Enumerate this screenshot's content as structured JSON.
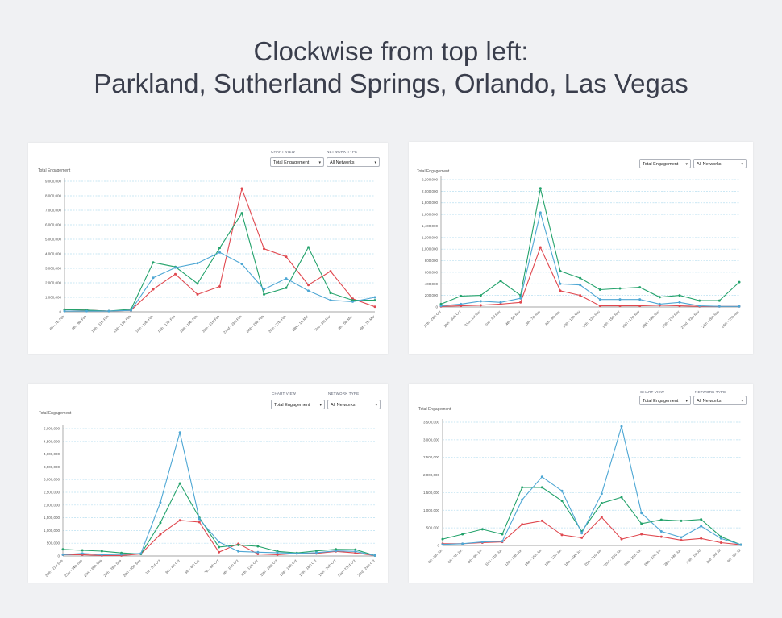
{
  "header": {
    "line1": "Clockwise from top left:",
    "line2": "Parkland, Sutherland Springs, Orlando, Las Vegas"
  },
  "colors": {
    "red": "#e0484f",
    "green": "#23a26b",
    "blue": "#4ea7d4",
    "grid": "#b9dff0"
  },
  "panels": [
    {
      "id": "parkland",
      "show_labels": true,
      "chart_view_label": "CHART VIEW",
      "network_type_label": "NETWORK TYPE",
      "chart_view": "Total Engagement",
      "network_type": "All Networks",
      "ylabel": "Total Engagement"
    },
    {
      "id": "sutherland",
      "show_labels": false,
      "chart_view": "Total Engagement",
      "network_type": "All Networks",
      "ylabel": "Total Engagement"
    },
    {
      "id": "orlando",
      "show_labels": true,
      "chart_view_label": "CHART VIEW",
      "network_type_label": "NETWORK TYPE",
      "chart_view": "Total Engagement",
      "network_type": "All Networks",
      "ylabel": "Total Engagement"
    },
    {
      "id": "lasvegas",
      "show_labels": true,
      "chart_view_label": "CHART VIEW",
      "network_type_label": "NETWORK TYPE",
      "chart_view": "Total Engagement",
      "network_type": "All Networks",
      "ylabel": "Total Engagement"
    }
  ],
  "chart_data": [
    {
      "type": "line",
      "title": "Parkland",
      "ylabel": "Total Engagement",
      "ylim": [
        0,
        9000000
      ],
      "yticks": [
        "0",
        "1,000,000",
        "2,000,000",
        "3,000,000",
        "4,000,000",
        "5,000,000",
        "6,000,000",
        "7,000,000",
        "8,000,000",
        "9,000,000"
      ],
      "categories": [
        "6th - 7th Feb",
        "8th - 9th Feb",
        "10th - 11th Feb",
        "12th - 13th Feb",
        "14th - 15th Feb",
        "16th - 17th Feb",
        "18th - 19th Feb",
        "20th - 21st Feb",
        "22nd - 23rd Feb",
        "24th - 25th Feb",
        "26th - 27th Feb",
        "28th - 1st Mar",
        "2nd - 3rd Mar",
        "4th - 5th Mar",
        "6th - 7th Mar"
      ],
      "series": [
        {
          "name": "red",
          "values": [
            150000,
            120000,
            50000,
            100000,
            1550000,
            2600000,
            1200000,
            1750000,
            8500000,
            4350000,
            3800000,
            1850000,
            2800000,
            900000,
            350000
          ]
        },
        {
          "name": "green",
          "values": [
            150000,
            120000,
            50000,
            180000,
            3400000,
            3100000,
            1950000,
            4400000,
            6800000,
            1200000,
            1650000,
            4450000,
            1300000,
            800000,
            800000
          ]
        },
        {
          "name": "blue",
          "values": [
            50000,
            50000,
            50000,
            100000,
            2350000,
            3050000,
            3350000,
            4100000,
            3300000,
            1550000,
            2300000,
            1450000,
            800000,
            700000,
            1000000
          ]
        }
      ]
    },
    {
      "type": "line",
      "title": "Sutherland Springs",
      "ylabel": "Total Engagement",
      "ylim": [
        0,
        2200000
      ],
      "yticks": [
        "0",
        "200,000",
        "400,000",
        "600,000",
        "800,000",
        "1,000,000",
        "1,200,000",
        "1,400,000",
        "1,600,000",
        "1,800,000",
        "2,000,000",
        "2,200,000"
      ],
      "categories": [
        "27th - 28th Oct",
        "29th - 30th Oct",
        "31st - 1st Nov",
        "2nd - 3rd Nov",
        "4th - 5th Nov",
        "6th - 7th Nov",
        "8th - 9th Nov",
        "10th - 11th Nov",
        "12th - 13th Nov",
        "14th - 15th Nov",
        "16th - 17th Nov",
        "18th - 19th Nov",
        "20th - 21st Nov",
        "22nd - 23rd Nov",
        "24th - 25th Nov",
        "26th - 27th Nov"
      ],
      "series": [
        {
          "name": "red",
          "values": [
            10000,
            20000,
            30000,
            50000,
            80000,
            1030000,
            280000,
            200000,
            20000,
            20000,
            20000,
            30000,
            20000,
            10000,
            10000,
            10000
          ]
        },
        {
          "name": "green",
          "values": [
            50000,
            190000,
            200000,
            450000,
            200000,
            2050000,
            620000,
            500000,
            300000,
            320000,
            340000,
            170000,
            200000,
            110000,
            110000,
            430000
          ]
        },
        {
          "name": "blue",
          "values": [
            20000,
            50000,
            100000,
            80000,
            150000,
            1630000,
            400000,
            380000,
            130000,
            130000,
            130000,
            50000,
            80000,
            20000,
            10000,
            10000
          ]
        }
      ]
    },
    {
      "type": "line",
      "title": "Orlando",
      "ylabel": "Total Engagement",
      "ylim": [
        0,
        5000000
      ],
      "yticks": [
        "0",
        "500,000",
        "1,000,000",
        "1,500,000",
        "2,000,000",
        "2,500,000",
        "3,000,000",
        "3,500,000",
        "4,000,000",
        "4,500,000",
        "5,000,000"
      ],
      "categories": [
        "20th - 21st Sep",
        "23rd - 24th Sep",
        "27th - 28th Sep",
        "27th - 28th Sep",
        "29th - 30th Sep",
        "1st - 2nd Oct",
        "3rd - 4th Oct",
        "5th - 6th Oct",
        "7th - 8th Oct",
        "9th - 10th Oct",
        "11th - 12th Oct",
        "13th - 14th Oct",
        "15th - 16th Oct",
        "17th - 18th Oct",
        "19th - 20th Oct",
        "21st - 22nd Oct",
        "23rd - 24th Oct"
      ],
      "series": [
        {
          "name": "red",
          "values": [
            50000,
            50000,
            20000,
            20000,
            80000,
            850000,
            1400000,
            1330000,
            150000,
            480000,
            80000,
            50000,
            100000,
            100000,
            180000,
            120000,
            20000
          ]
        },
        {
          "name": "green",
          "values": [
            260000,
            220000,
            190000,
            120000,
            80000,
            1300000,
            2850000,
            1500000,
            350000,
            430000,
            380000,
            180000,
            120000,
            200000,
            260000,
            250000,
            20000
          ]
        },
        {
          "name": "blue",
          "values": [
            50000,
            100000,
            50000,
            60000,
            100000,
            2100000,
            4850000,
            1450000,
            550000,
            180000,
            150000,
            130000,
            100000,
            130000,
            200000,
            180000,
            20000
          ]
        }
      ]
    },
    {
      "type": "line",
      "title": "Las Vegas",
      "ylabel": "Total Engagement",
      "ylim": [
        0,
        3500000
      ],
      "yticks": [
        "0",
        "500,000",
        "1,000,000",
        "1,500,000",
        "2,000,000",
        "2,500,000",
        "3,000,000",
        "3,500,000"
      ],
      "categories": [
        "4th - 5th Jun",
        "6th - 7th Jun",
        "8th - 9th Jun",
        "10th - 11th Jun",
        "12th - 13th Jun",
        "14th - 15th Jun",
        "16th - 17th Jun",
        "18th - 19th Jun",
        "20th - 21st Jun",
        "22nd - 23rd Jun",
        "24th - 25th Jun",
        "26th - 27th Jun",
        "28th - 29th Jun",
        "30th - 1st Jul",
        "2nd - 3rd Jul",
        "4th - 5th Jul"
      ],
      "series": [
        {
          "name": "red",
          "values": [
            50000,
            50000,
            80000,
            100000,
            600000,
            700000,
            300000,
            220000,
            800000,
            180000,
            320000,
            250000,
            150000,
            200000,
            80000,
            20000
          ]
        },
        {
          "name": "green",
          "values": [
            180000,
            320000,
            460000,
            320000,
            1650000,
            1650000,
            1270000,
            400000,
            1200000,
            1370000,
            620000,
            730000,
            700000,
            740000,
            250000,
            20000
          ]
        },
        {
          "name": "blue",
          "values": [
            30000,
            50000,
            100000,
            120000,
            1300000,
            1950000,
            1550000,
            350000,
            1470000,
            3380000,
            920000,
            400000,
            230000,
            550000,
            200000,
            20000
          ]
        }
      ]
    }
  ]
}
